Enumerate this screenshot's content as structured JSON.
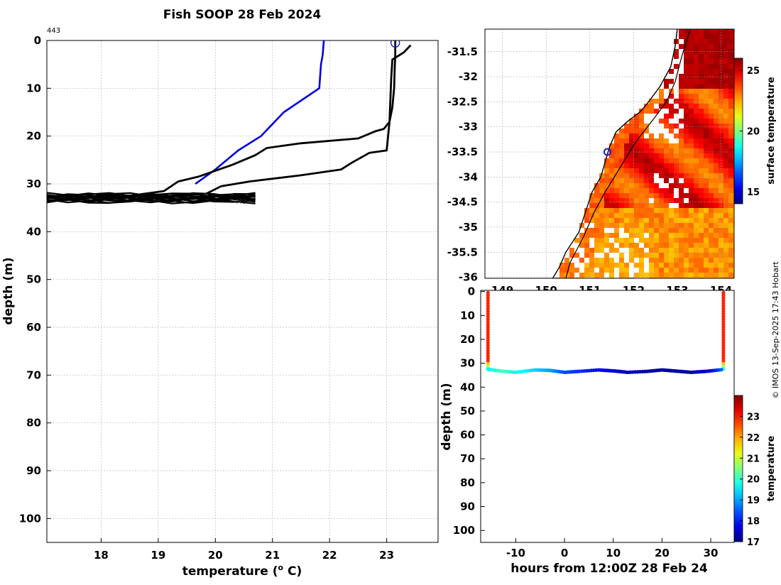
{
  "title": "Fish SOOP 28 Feb 2024",
  "credit": "© IMOS 13-Sep-2025 17:43 Hobart",
  "colors": {
    "axis": "#000000",
    "grid": "#b8b8b8",
    "profile": "#000000",
    "climatology": "#0000dd",
    "marker": "#1a1acc",
    "land": "#ffffff",
    "coast": "#000000"
  },
  "chart_data": [
    {
      "id": "profile",
      "type": "line",
      "title": "Fish SOOP 28 Feb 2024",
      "xlabel": "temperature (°C)",
      "xlabel_text": "temperature (",
      "xlabel_sup": "o",
      "xlabel_unit": " C)",
      "ylabel": "depth (m)",
      "xlim": [
        17.05,
        23.9
      ],
      "ylim": [
        0,
        105
      ],
      "y_reversed": true,
      "grid": true,
      "x_ticks": [
        18,
        19,
        20,
        21,
        22,
        23
      ],
      "x_tick_labels": [
        "18",
        "19",
        "20",
        "21",
        "22",
        "23"
      ],
      "y_ticks": [
        0,
        10,
        20,
        30,
        40,
        50,
        60,
        70,
        80,
        90,
        100
      ],
      "y_tick_labels": [
        "0",
        "10",
        "20",
        "30",
        "40",
        "50",
        "60",
        "70",
        "80",
        "90",
        "100"
      ],
      "top_annotation": "443",
      "bottom_annotation": "443",
      "marker": {
        "temperature": 23.15,
        "depth": 0.5
      },
      "series": [
        {
          "name": "climatology",
          "color": "#0000dd",
          "x": [
            21.9,
            21.88,
            21.85,
            21.82,
            21.2,
            20.8,
            20.4,
            20.0,
            19.65
          ],
          "y": [
            0,
            3,
            5,
            10,
            15,
            20,
            23,
            27,
            30
          ]
        },
        {
          "name": "profile-down",
          "color": "#000000",
          "x": [
            23.15,
            23.15,
            23.14,
            23.13,
            23.1,
            23.05,
            22.95,
            22.8,
            22.5,
            21.5,
            20.9,
            20.7,
            20.3,
            19.7,
            19.35,
            19.1,
            18.5,
            17.6
          ],
          "y": [
            0,
            3,
            6,
            10,
            14,
            17,
            18.5,
            19,
            20.5,
            21.5,
            22.5,
            24,
            26,
            28.5,
            29.5,
            31.5,
            32.5,
            32.8
          ]
        },
        {
          "name": "profile-up",
          "color": "#000000",
          "x": [
            20.6,
            20.0,
            19.85,
            20.1,
            20.6,
            21.5,
            22.2,
            22.4,
            22.7,
            23.0,
            23.05,
            23.08,
            23.1,
            23.3,
            23.42
          ],
          "y": [
            33,
            32.5,
            32,
            30.5,
            29.5,
            28.2,
            27,
            25.5,
            23.5,
            23,
            17,
            8,
            4,
            2.5,
            1
          ]
        }
      ],
      "bottom_scatter_band": {
        "depth_min": 32.3,
        "depth_max": 33.8,
        "temperature_min": 17.05,
        "temperature_max": 20.7
      }
    },
    {
      "id": "map",
      "type": "heatmap",
      "description_field": "surface temperature",
      "colorbar_label": "surface temperature",
      "xlim": [
        148.6,
        154.3
      ],
      "ylim": [
        -36.02,
        -31.05
      ],
      "x_ticks": [
        149,
        150,
        151,
        152,
        153,
        154
      ],
      "x_tick_labels": [
        "149",
        "150",
        "151",
        "152",
        "153",
        "154"
      ],
      "y_ticks": [
        -31.5,
        -32,
        -32.5,
        -33,
        -33.5,
        -34,
        -34.5,
        -35,
        -35.5,
        -36
      ],
      "y_tick_labels": [
        "-31.5",
        "-32",
        "-32.5",
        "-33",
        "-33.5",
        "-34",
        "-34.5",
        "-35",
        "-35.5",
        "-36"
      ],
      "colorbar_range": [
        14,
        26
      ],
      "colorbar_ticks": [
        15,
        20,
        25
      ],
      "colorbar_tick_labels": [
        "15",
        "20",
        "25"
      ],
      "station": {
        "lon": 151.4,
        "lat": -33.5
      },
      "coastline": [
        [
          153.0,
          -31.05
        ],
        [
          152.95,
          -31.4
        ],
        [
          152.85,
          -31.8
        ],
        [
          152.6,
          -32.2
        ],
        [
          152.3,
          -32.55
        ],
        [
          152.15,
          -32.7
        ],
        [
          151.85,
          -32.9
        ],
        [
          151.6,
          -33.1
        ],
        [
          151.45,
          -33.4
        ],
        [
          151.35,
          -33.7
        ],
        [
          151.25,
          -34.0
        ],
        [
          151.05,
          -34.3
        ],
        [
          150.9,
          -34.7
        ],
        [
          150.75,
          -35.1
        ],
        [
          150.45,
          -35.5
        ],
        [
          150.3,
          -35.8
        ],
        [
          150.15,
          -36.02
        ]
      ],
      "contour": [
        [
          153.3,
          -31.05
        ],
        [
          153.1,
          -31.6
        ],
        [
          152.95,
          -32.1
        ],
        [
          152.75,
          -32.5
        ],
        [
          152.45,
          -32.85
        ],
        [
          152.05,
          -33.3
        ],
        [
          151.7,
          -33.8
        ],
        [
          151.35,
          -34.3
        ],
        [
          151.1,
          -34.7
        ],
        [
          150.85,
          -35.2
        ],
        [
          150.55,
          -35.7
        ],
        [
          150.45,
          -36.02
        ]
      ]
    },
    {
      "id": "section",
      "type": "scatter",
      "xlabel": "hours from 12:00Z 28 Feb 24",
      "ylabel": "depth (m)",
      "colorbar_label": "temperature",
      "xlim": [
        -17.2,
        34.8
      ],
      "ylim": [
        -0.5,
        105
      ],
      "y_reversed": true,
      "x_ticks": [
        -10,
        0,
        10,
        20,
        30
      ],
      "x_tick_labels": [
        "-10",
        "0",
        "10",
        "20",
        "30"
      ],
      "y_ticks": [
        0,
        10,
        20,
        30,
        40,
        50,
        60,
        70,
        80,
        90,
        100
      ],
      "y_tick_labels": [
        "0",
        "10",
        "20",
        "30",
        "40",
        "50",
        "60",
        "70",
        "80",
        "90",
        "100"
      ],
      "colorbar_range": [
        17,
        24
      ],
      "colorbar_ticks": [
        17,
        18,
        19,
        20,
        21,
        22,
        23
      ],
      "colorbar_tick_labels": [
        "17",
        "18",
        "19",
        "20",
        "21",
        "22",
        "23"
      ],
      "left_cast": {
        "hour": -15.7,
        "depth_max": 32.5,
        "surface_temperature": 22.9
      },
      "right_cast": {
        "hour": 32.6,
        "depth_max": 32.5,
        "surface_temperature": 22.9
      },
      "bottom_track": {
        "hour": [
          -15.7,
          -13,
          -10,
          -6,
          -3,
          0,
          3,
          7,
          10,
          13,
          17,
          20,
          23,
          26,
          29,
          32.6
        ],
        "depth": [
          32.5,
          33.3,
          33.8,
          32.8,
          33.0,
          33.8,
          33.4,
          32.8,
          33.2,
          33.8,
          33.4,
          32.8,
          33.3,
          33.8,
          33.4,
          32.6
        ],
        "temperature": [
          19.6,
          20.1,
          19.8,
          19.3,
          19.0,
          18.4,
          18.2,
          17.9,
          17.6,
          17.4,
          17.3,
          17.2,
          17.25,
          17.3,
          17.5,
          18.6
        ]
      }
    }
  ]
}
